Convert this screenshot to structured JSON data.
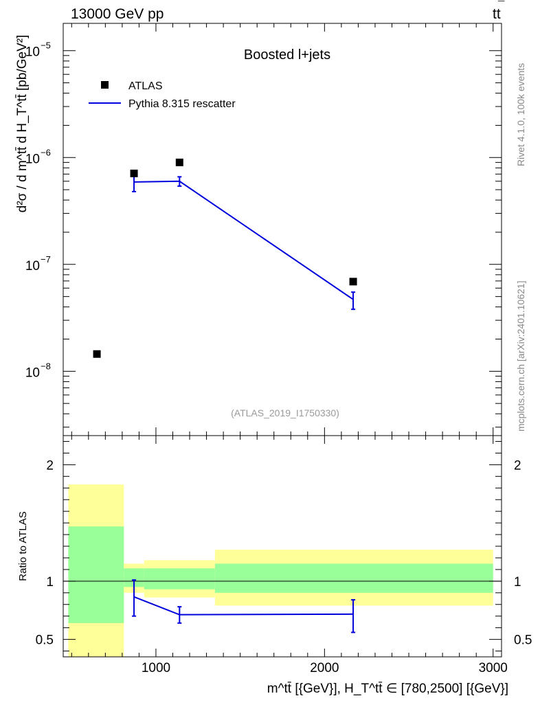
{
  "header": {
    "left": "13000 GeV pp",
    "right_main": "tt",
    "right_bar": "¯"
  },
  "side_labels": {
    "top": "Rivet 4.1.0,  100k events",
    "bottom": "mcplots.cern.ch [arXiv:2401.10621]"
  },
  "colors": {
    "data": "#000000",
    "mc": "#0000dd",
    "band_inner": "#99ff99",
    "band_outer": "#ffff99",
    "watermark": "#9a9a9a"
  },
  "chart_data": [
    {
      "type": "scatter",
      "panel": "main",
      "title": "Boosted l+jets",
      "watermark": "(ATLAS_2019_I1750330)",
      "ylabel": "d²σ / d m^tt̄ d H_T^tt̄ [pb/GeV²]",
      "yscale": "log",
      "xlim": [
        450,
        3050
      ],
      "ylim": [
        2.5e-09,
        1.8e-05
      ],
      "y_ticks": [
        {
          "value": 1e-08,
          "base": "10",
          "exp": "−8"
        },
        {
          "value": 1e-07,
          "base": "10",
          "exp": "−7"
        },
        {
          "value": 1e-06,
          "base": "10",
          "exp": "−6"
        },
        {
          "value": 1e-05,
          "base": "10",
          "exp": "−5"
        }
      ],
      "legend": [
        {
          "name": "ATLAS",
          "marker": "square"
        },
        {
          "name": "Pythia 8.315 rescatter",
          "marker": "line"
        }
      ],
      "series": [
        {
          "name": "ATLAS",
          "points": [
            {
              "x": 650,
              "y": 1.45e-08
            },
            {
              "x": 870,
              "y": 7.1e-07
            },
            {
              "x": 1140,
              "y": 9e-07
            },
            {
              "x": 2170,
              "y": 6.9e-08
            }
          ]
        },
        {
          "name": "Pythia 8.315 rescatter",
          "points": [
            {
              "x": 870,
              "x_lo": 870,
              "x_hi": 1140,
              "y": 5.9e-07,
              "err_lo": 4.8e-07,
              "err_hi": 7.1e-07
            },
            {
              "x": 1140,
              "x_lo": 1140,
              "x_hi": 2170,
              "y": 6e-07,
              "err_lo": 5.4e-07,
              "err_hi": 6.6e-07
            },
            {
              "x": 2170,
              "x_lo": 2170,
              "x_hi": 2170,
              "y": 4.7e-08,
              "err_lo": 3.8e-08,
              "err_hi": 5.5e-08
            }
          ]
        }
      ]
    },
    {
      "type": "line",
      "panel": "ratio",
      "ylabel": "Ratio to ATLAS",
      "xlabel": "m^tt̄ [{GeV}], H_T^tt̄ ∈ [780,2500] [{GeV}]",
      "xlim": [
        450,
        3050
      ],
      "ylim": [
        0.35,
        2.25
      ],
      "x_ticks": [
        1000,
        2000,
        3000
      ],
      "y_ticks": [
        0.5,
        1,
        2
      ],
      "reference": 1,
      "bands": [
        {
          "x_lo": 480,
          "x_hi": 810,
          "inner": [
            0.64,
            1.47
          ],
          "outer": [
            0.35,
            1.83
          ]
        },
        {
          "x_lo": 810,
          "x_hi": 930,
          "inner": [
            0.95,
            1.11
          ],
          "outer": [
            0.9,
            1.15
          ]
        },
        {
          "x_lo": 930,
          "x_hi": 1350,
          "inner": [
            0.93,
            1.11
          ],
          "outer": [
            0.86,
            1.18
          ]
        },
        {
          "x_lo": 1350,
          "x_hi": 3000,
          "inner": [
            0.9,
            1.15
          ],
          "outer": [
            0.79,
            1.27
          ]
        }
      ],
      "series": [
        {
          "name": "Pythia 8.315 rescatter",
          "points": [
            {
              "x": 870,
              "y": 0.865,
              "err_lo": 0.7,
              "err_hi": 1.01
            },
            {
              "x": 1140,
              "y": 0.712,
              "err_lo": 0.64,
              "err_hi": 0.78
            },
            {
              "x": 2170,
              "y": 0.717,
              "err_lo": 0.56,
              "err_hi": 0.84
            }
          ]
        }
      ]
    }
  ]
}
